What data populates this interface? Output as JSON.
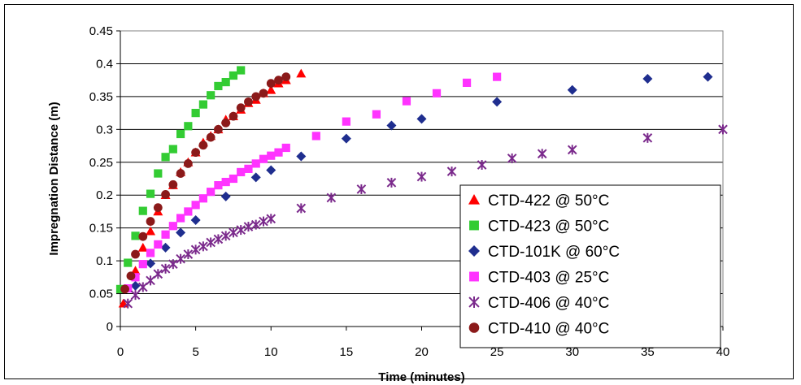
{
  "chart_data": {
    "type": "scatter",
    "xlabel": "Time (minutes)",
    "ylabel": "Impregnation Distance (m)",
    "xlim": [
      0,
      40
    ],
    "ylim": [
      0,
      0.45
    ],
    "x_ticks": [
      "0",
      "5",
      "10",
      "15",
      "20",
      "25",
      "30",
      "35",
      "40"
    ],
    "y_ticks": [
      "0",
      "0.05",
      "0.1",
      "0.15",
      "0.2",
      "0.25",
      "0.3",
      "0.35",
      "0.4",
      "0.45"
    ],
    "grid": "horizontal",
    "legend_position": "bottom-right",
    "series": [
      {
        "name": "CTD-422 @ 50°C",
        "marker": "triangle",
        "color": "#ff0000",
        "x": [
          0.2,
          1.0,
          1.5,
          2.0,
          2.5,
          3.0,
          3.5,
          4.0,
          4.5,
          5.0,
          5.5,
          6.0,
          6.5,
          7.0,
          7.5,
          8.0,
          8.5,
          9.0,
          9.5,
          10.0,
          10.5,
          11.0,
          12.0
        ],
        "y": [
          0.035,
          0.085,
          0.12,
          0.145,
          0.175,
          0.2,
          0.215,
          0.235,
          0.25,
          0.265,
          0.28,
          0.29,
          0.3,
          0.315,
          0.32,
          0.33,
          0.34,
          0.345,
          0.355,
          0.36,
          0.37,
          0.375,
          0.385
        ]
      },
      {
        "name": "CTD-423 @ 50°C",
        "marker": "square",
        "color": "#33cc33",
        "x": [
          0,
          0.5,
          1.0,
          1.5,
          2.0,
          2.5,
          3.0,
          3.5,
          4.0,
          4.5,
          5.0,
          5.5,
          6.0,
          6.5,
          7.0,
          7.5,
          8.0
        ],
        "y": [
          0.057,
          0.097,
          0.138,
          0.176,
          0.202,
          0.233,
          0.258,
          0.27,
          0.293,
          0.305,
          0.325,
          0.338,
          0.352,
          0.366,
          0.372,
          0.382,
          0.39
        ]
      },
      {
        "name": "CTD-101K @ 60°C",
        "marker": "diamond",
        "color": "#1f2e8f",
        "x": [
          1.0,
          2.0,
          3.0,
          4.0,
          5.0,
          7.0,
          9.0,
          10.0,
          12.0,
          15.0,
          18.0,
          20.0,
          25.0,
          30.0,
          35.0,
          39.0
        ],
        "y": [
          0.062,
          0.096,
          0.12,
          0.143,
          0.162,
          0.198,
          0.227,
          0.238,
          0.259,
          0.286,
          0.306,
          0.316,
          0.342,
          0.36,
          0.377,
          0.38
        ]
      },
      {
        "name": "CTD-403 @ 25°C",
        "marker": "square",
        "color": "#ff33ff",
        "x": [
          0.5,
          1.0,
          1.5,
          2.0,
          2.5,
          3.0,
          3.5,
          4.0,
          4.5,
          5.0,
          5.5,
          6.0,
          6.5,
          7.0,
          7.5,
          8.0,
          8.5,
          9.0,
          9.5,
          10.0,
          10.5,
          11.0,
          13.0,
          15.0,
          17.0,
          19.0,
          21.0,
          23.0,
          25.0
        ],
        "y": [
          0.058,
          0.075,
          0.095,
          0.112,
          0.125,
          0.14,
          0.153,
          0.165,
          0.175,
          0.185,
          0.195,
          0.205,
          0.215,
          0.22,
          0.225,
          0.235,
          0.24,
          0.248,
          0.255,
          0.26,
          0.265,
          0.272,
          0.29,
          0.312,
          0.323,
          0.343,
          0.355,
          0.371,
          0.38
        ]
      },
      {
        "name": "CTD-406 @ 40°C",
        "marker": "star",
        "color": "#7b2a8c",
        "x": [
          0.5,
          1.0,
          1.5,
          2.0,
          2.5,
          3.0,
          3.5,
          4.0,
          4.5,
          5.0,
          5.5,
          6.0,
          6.5,
          7.0,
          7.5,
          8.0,
          8.5,
          9.0,
          9.5,
          10.0,
          12.0,
          14.0,
          16.0,
          18.0,
          20.0,
          22.0,
          24.0,
          26.0,
          28.0,
          30.0,
          35.0,
          40.0
        ],
        "y": [
          0.035,
          0.048,
          0.06,
          0.07,
          0.08,
          0.088,
          0.095,
          0.103,
          0.11,
          0.117,
          0.122,
          0.128,
          0.133,
          0.138,
          0.143,
          0.147,
          0.152,
          0.155,
          0.16,
          0.164,
          0.18,
          0.196,
          0.209,
          0.219,
          0.228,
          0.236,
          0.246,
          0.256,
          0.263,
          0.269,
          0.287,
          0.3
        ]
      },
      {
        "name": "CTD-410 @ 40°C",
        "marker": "circle",
        "color": "#8b1a1a",
        "x": [
          0.3,
          0.7,
          1.0,
          1.5,
          2.0,
          2.5,
          3.0,
          3.5,
          4.0,
          4.5,
          5.0,
          5.5,
          6.0,
          6.5,
          7.0,
          7.5,
          8.0,
          8.5,
          9.0,
          9.5,
          10.0,
          10.5,
          11.0
        ],
        "y": [
          0.057,
          0.077,
          0.11,
          0.137,
          0.16,
          0.181,
          0.201,
          0.216,
          0.233,
          0.248,
          0.265,
          0.276,
          0.288,
          0.3,
          0.31,
          0.32,
          0.333,
          0.342,
          0.35,
          0.355,
          0.37,
          0.375,
          0.38
        ]
      }
    ]
  }
}
